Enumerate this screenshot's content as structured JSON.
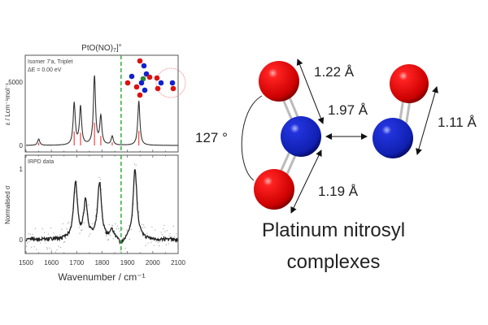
{
  "chart_data": [
    {
      "type": "line",
      "title": "PtO(NO)7]+",
      "title_parts": {
        "main": "PtO(NO)",
        "sub": "7",
        "close": "]",
        "sup": "+"
      },
      "annotations": [
        "Isomer 7'a, Triplet",
        "ΔE = 0.00 eV"
      ],
      "ylabel": "ε / Lcm⁻¹mol⁻¹",
      "ylim": [
        -300,
        7000
      ],
      "yticks": [
        "0",
        "5000"
      ],
      "xlim": [
        1500,
        2100
      ],
      "series": [
        {
          "name": "computed spectrum",
          "color": "#333333",
          "peaks": [
            [
              1550,
              500
            ],
            [
              1690,
              3300
            ],
            [
              1715,
              3000
            ],
            [
              1770,
              5400
            ],
            [
              1795,
              2200
            ],
            [
              1840,
              700
            ],
            [
              1945,
              3500
            ]
          ]
        },
        {
          "name": "stick spectrum",
          "color": "#ee4444",
          "sticks": [
            [
              1550,
              200
            ],
            [
              1690,
              1100
            ],
            [
              1715,
              1000
            ],
            [
              1770,
              1800
            ],
            [
              1795,
              750
            ],
            [
              1840,
              250
            ],
            [
              1945,
              1150
            ]
          ]
        }
      ],
      "marker_line": {
        "x": 1875,
        "color": "#22aa33",
        "style": "dashed"
      }
    },
    {
      "type": "line",
      "annotations": [
        "IRPD data"
      ],
      "xlabel": "Wavenumber / cm⁻¹",
      "ylabel": "Normalised σ",
      "xlim": [
        1500,
        2100
      ],
      "xticks": [
        "1500",
        "1600",
        "1700",
        "1800",
        "1900",
        "2000",
        "2100"
      ],
      "ylim": [
        -0.2,
        1.2
      ],
      "yticks": [
        "0",
        "1"
      ],
      "series": [
        {
          "name": "IRPD data",
          "color": "#222222",
          "peaks": [
            [
              1695,
              0.8
            ],
            [
              1735,
              0.52
            ],
            [
              1790,
              0.8
            ],
            [
              1840,
              0.12
            ],
            [
              1875,
              -0.1
            ],
            [
              1930,
              1.0
            ]
          ]
        }
      ],
      "marker_line": {
        "x": 1875,
        "color": "#22aa33",
        "style": "dashed"
      }
    }
  ],
  "diagram": {
    "bond_labels": {
      "no_upper": "1.22 Å",
      "pt_n": "1.97 Å",
      "free_no": "1.11 Å",
      "no_lower": "1.19 Å",
      "angle": "127 °"
    },
    "title_line1": "Platinum nitrosyl",
    "title_line2": "complexes",
    "colors": {
      "oxygen": "#dd1111",
      "nitrogen": "#1122cc"
    }
  }
}
